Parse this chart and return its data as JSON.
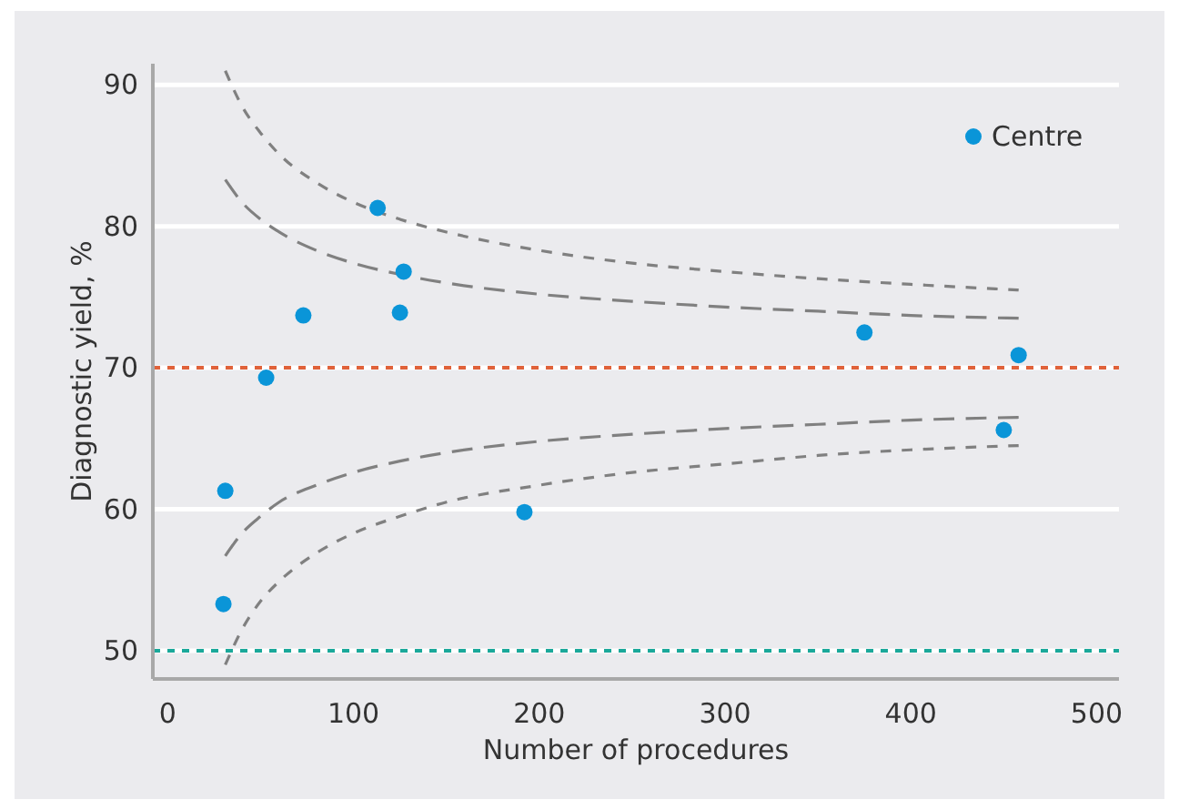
{
  "chart_data": {
    "type": "scatter",
    "xlabel": "Number of procedures",
    "ylabel": "Diagnostic yield, %",
    "xlim": [
      -8,
      512
    ],
    "ylim": [
      48,
      91.5
    ],
    "xticks": [
      0,
      100,
      200,
      300,
      400,
      500
    ],
    "yticks": [
      50,
      60,
      70,
      80,
      90
    ],
    "grid": "y",
    "legend": "top right",
    "ref_lines": [
      {
        "axis": "y",
        "value": 70,
        "color": "#e0623a",
        "line_style": "dashed"
      },
      {
        "axis": "y",
        "value": 50,
        "color": "#1aa89a",
        "line_style": "dashed"
      }
    ],
    "series": [
      {
        "name": "Centre",
        "marker": "circle",
        "color": "#0a95d8",
        "x": [
          30,
          31,
          53,
          73,
          113,
          127,
          125,
          192,
          375,
          458,
          450
        ],
        "values": [
          53.3,
          61.3,
          69.3,
          73.7,
          81.3,
          76.8,
          73.9,
          59.8,
          72.5,
          70.9,
          65.6
        ]
      },
      {
        "type": "line",
        "line_style": "dashed",
        "marker": "none",
        "color": "#808080",
        "x": [
          31,
          40,
          50,
          60,
          80,
          100,
          125,
          150,
          200,
          250,
          300,
          350,
          400,
          458
        ],
        "values": [
          91.0,
          88.5,
          86.6,
          85.1,
          83.1,
          81.7,
          80.5,
          79.6,
          78.3,
          77.4,
          76.8,
          76.3,
          75.9,
          75.5
        ]
      },
      {
        "type": "line",
        "line_style": "dashed",
        "marker": "none",
        "color": "#808080",
        "x": [
          31,
          40,
          50,
          60,
          80,
          100,
          125,
          150,
          200,
          250,
          300,
          350,
          400,
          458
        ],
        "values": [
          83.3,
          81.7,
          80.5,
          79.6,
          78.3,
          77.4,
          76.6,
          76.0,
          75.2,
          74.7,
          74.3,
          74.0,
          73.7,
          73.5
        ]
      },
      {
        "type": "line",
        "line_style": "dashed",
        "marker": "none",
        "color": "#808080",
        "x": [
          31,
          40,
          50,
          60,
          80,
          100,
          125,
          150,
          200,
          250,
          300,
          350,
          400,
          458
        ],
        "values": [
          56.7,
          58.3,
          59.5,
          60.5,
          61.7,
          62.6,
          63.4,
          64.0,
          64.8,
          65.3,
          65.7,
          66.0,
          66.3,
          66.5
        ]
      },
      {
        "type": "line",
        "line_style": "dashed",
        "marker": "none",
        "color": "#808080",
        "x": [
          31,
          40,
          50,
          60,
          80,
          100,
          125,
          150,
          200,
          250,
          300,
          350,
          400,
          458
        ],
        "values": [
          49.0,
          51.5,
          53.5,
          54.9,
          56.9,
          58.3,
          59.5,
          60.5,
          61.7,
          62.6,
          63.2,
          63.8,
          64.2,
          64.5
        ]
      }
    ]
  }
}
